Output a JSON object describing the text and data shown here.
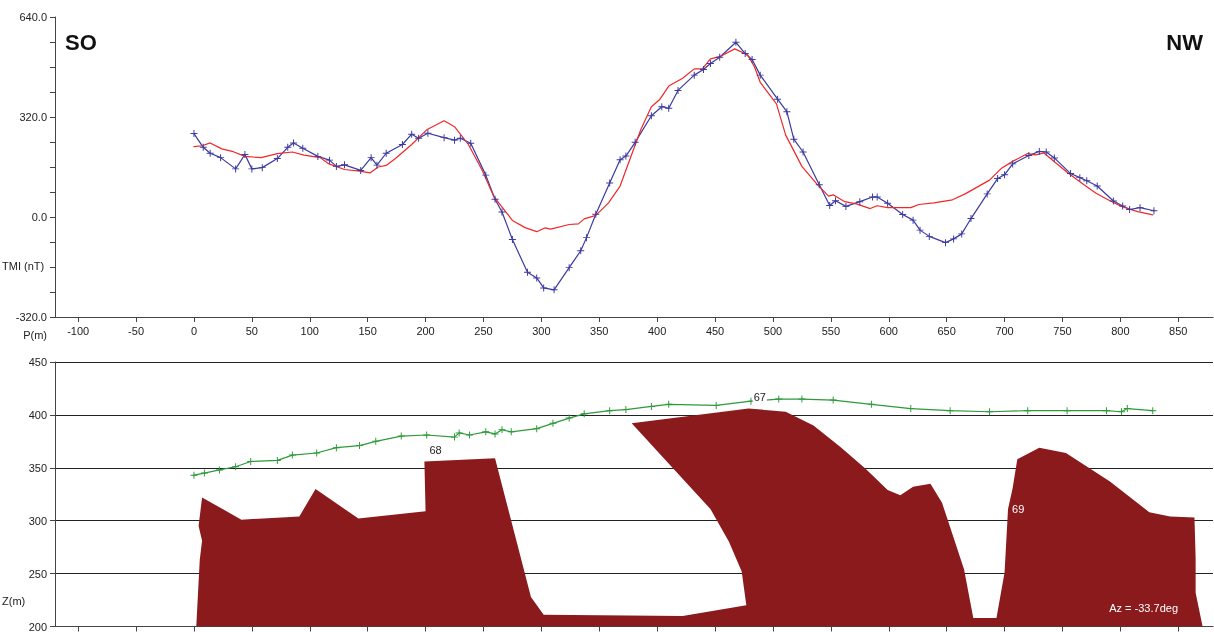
{
  "chart_data": [
    {
      "type": "line",
      "ylabel": "TMI (nT)",
      "xlabel": "P(m)",
      "xlim": [
        -120,
        880
      ],
      "xticks": [
        -100,
        -50,
        0,
        50,
        100,
        150,
        200,
        250,
        300,
        350,
        400,
        450,
        500,
        550,
        600,
        650,
        700,
        750,
        800,
        850
      ],
      "ylim": [
        -320,
        640
      ],
      "yticks": [
        {
          "value": -320,
          "label": "-320.0"
        },
        {
          "value": -240,
          "label": null
        },
        {
          "value": -160,
          "label": null
        },
        {
          "value": -80,
          "label": null
        },
        {
          "value": 0,
          "label": "0.0"
        },
        {
          "value": 80,
          "label": null
        },
        {
          "value": 160,
          "label": null
        },
        {
          "value": 240,
          "label": null
        },
        {
          "value": 320,
          "label": "320.0"
        },
        {
          "value": 400,
          "label": null
        },
        {
          "value": 480,
          "label": null
        },
        {
          "value": 560,
          "label": null
        },
        {
          "value": 640,
          "label": "640.0"
        }
      ],
      "grid": false,
      "line_style": "solid",
      "annotations": [
        "SO",
        "NW"
      ],
      "series": [
        {
          "color": "#3a3aa0",
          "marker": "cross",
          "x": [
            0,
            8,
            14,
            23,
            36,
            44,
            50,
            59,
            72,
            81,
            86,
            94,
            107,
            117,
            123,
            130,
            144,
            153,
            158,
            166,
            180,
            188,
            194,
            202,
            216,
            225,
            230,
            239,
            252,
            260,
            266,
            275,
            288,
            296,
            302,
            311,
            324,
            334,
            339,
            347,
            359,
            368,
            373,
            381,
            395,
            404,
            410,
            418,
            432,
            440,
            446,
            454,
            468,
            476,
            482,
            489,
            504,
            512,
            518,
            526,
            540,
            549,
            554,
            563,
            575,
            586,
            590,
            599,
            612,
            621,
            627,
            635,
            649,
            656,
            663,
            671,
            685,
            694,
            700,
            707,
            721,
            730,
            736,
            743,
            757,
            765,
            771,
            780,
            794,
            802,
            808,
            817,
            829
          ],
          "values": [
            267,
            223,
            204,
            190,
            154,
            200,
            154,
            158,
            187,
            223,
            237,
            220,
            194,
            182,
            162,
            167,
            149,
            190,
            166,
            204,
            232,
            265,
            252,
            268,
            254,
            246,
            252,
            236,
            134,
            57,
            16,
            -72,
            -177,
            -195,
            -227,
            -233,
            -162,
            -108,
            -66,
            9,
            109,
            183,
            195,
            239,
            324,
            353,
            348,
            405,
            454,
            472,
            491,
            511,
            559,
            523,
            504,
            454,
            377,
            337,
            249,
            208,
            103,
            37,
            52,
            34,
            49,
            64,
            64,
            44,
            8,
            -10,
            -42,
            -62,
            -82,
            -70,
            -54,
            -5,
            74,
            123,
            135,
            170,
            197,
            210,
            208,
            189,
            139,
            126,
            116,
            99,
            51,
            35,
            24,
            30,
            20
          ]
        },
        {
          "color": "#f02828",
          "marker": "none",
          "x": [
            0,
            7,
            14,
            24,
            34,
            44,
            58,
            72,
            85,
            95,
            109,
            116,
            130,
            143,
            152,
            159,
            166,
            174,
            188,
            201,
            216,
            225,
            237,
            249,
            259,
            275,
            286,
            296,
            303,
            308,
            324,
            332,
            337,
            347,
            358,
            368,
            376,
            386,
            395,
            402,
            410,
            422,
            432,
            439,
            446,
            454,
            467,
            478,
            484,
            489,
            503,
            511,
            525,
            538,
            548,
            552,
            562,
            572,
            584,
            590,
            599,
            619,
            626,
            639,
            655,
            666,
            687,
            697,
            707,
            720,
            727,
            734,
            742,
            754,
            768,
            779,
            791,
            801,
            815,
            828
          ],
          "values": [
            225,
            228,
            237,
            218,
            209,
            194,
            190,
            203,
            208,
            198,
            190,
            171,
            152,
            147,
            141,
            160,
            165,
            187,
            232,
            279,
            308,
            289,
            232,
            149,
            65,
            -11,
            -34,
            -47,
            -35,
            -39,
            -24,
            -22,
            -6,
            5,
            45,
            99,
            180,
            281,
            353,
            375,
            419,
            444,
            474,
            474,
            506,
            513,
            538,
            519,
            481,
            431,
            362,
            262,
            162,
            105,
            67,
            71,
            49,
            42,
            27,
            36,
            30,
            30,
            40,
            45,
            55,
            74,
            118,
            155,
            178,
            203,
            199,
            205,
            180,
            143,
            105,
            76,
            52,
            34,
            17,
            7
          ]
        }
      ]
    },
    {
      "type": "line",
      "ylabel": "Z(m)",
      "xlim": [
        -120,
        880
      ],
      "xticks": [
        -100,
        -50,
        0,
        50,
        100,
        150,
        200,
        250,
        300,
        350,
        400,
        450,
        500,
        550,
        600,
        650,
        700,
        750,
        800,
        850
      ],
      "ylim": [
        200,
        450
      ],
      "yticks": [
        200,
        250,
        300,
        350,
        400,
        450
      ],
      "grid": "y",
      "line_style": "solid",
      "tick_labels": "y",
      "annotations": [
        {
          "text": "68",
          "x": 199,
          "y": 356
        },
        {
          "text": "67",
          "x": 479,
          "y": 406
        },
        {
          "text": "69",
          "x": 703,
          "y": 311
        },
        "Az = -33.7deg"
      ],
      "series": [
        {
          "color": "#2e9a3a",
          "marker": "cross",
          "x": [
            0,
            9,
            22,
            36,
            49,
            72,
            85,
            106,
            123,
            143,
            157,
            179,
            201,
            225,
            229,
            238,
            252,
            260,
            266,
            274,
            296,
            310,
            324,
            337,
            359,
            373,
            395,
            410,
            451,
            481,
            505,
            525,
            552,
            585,
            619,
            653,
            687,
            720,
            754,
            788,
            801,
            806,
            828
          ],
          "values": [
            343,
            345,
            348,
            351,
            356,
            357,
            362,
            364,
            369,
            371,
            375,
            380,
            381,
            379,
            383,
            381,
            384,
            382,
            386,
            384,
            387,
            392,
            397,
            401,
            404,
            405,
            408,
            410,
            409,
            413,
            415,
            415,
            414,
            410,
            406,
            404,
            403,
            404,
            404,
            404,
            403,
            406,
            404
          ]
        },
        {
          "type": "area",
          "color": "#8b1a1d",
          "x": [
            2,
            5,
            7,
            4,
            7,
            41,
            91,
            105,
            142,
            200,
            199,
            260,
            291,
            302,
            422,
            477,
            477,
            473,
            462,
            446,
            420,
            378,
            479,
            511,
            535,
            558,
            580,
            599,
            610,
            621,
            636,
            646,
            665,
            673,
            693,
            700,
            703,
            707,
            711,
            730,
            753,
            791,
            825,
            843,
            864,
            865,
            865,
            871
          ],
          "values": [
            200,
            263,
            281,
            295,
            322,
            301,
            304,
            330,
            302,
            309,
            356,
            359,
            228,
            211,
            210,
            220,
            220,
            252,
            280,
            311,
            342,
            392,
            406,
            403,
            390,
            370,
            349,
            329,
            324,
            332,
            335,
            317,
            254,
            208,
            208,
            251,
            311,
            331,
            358,
            369,
            364,
            337,
            308,
            304,
            303,
            265,
            232,
            200
          ]
        }
      ]
    }
  ]
}
